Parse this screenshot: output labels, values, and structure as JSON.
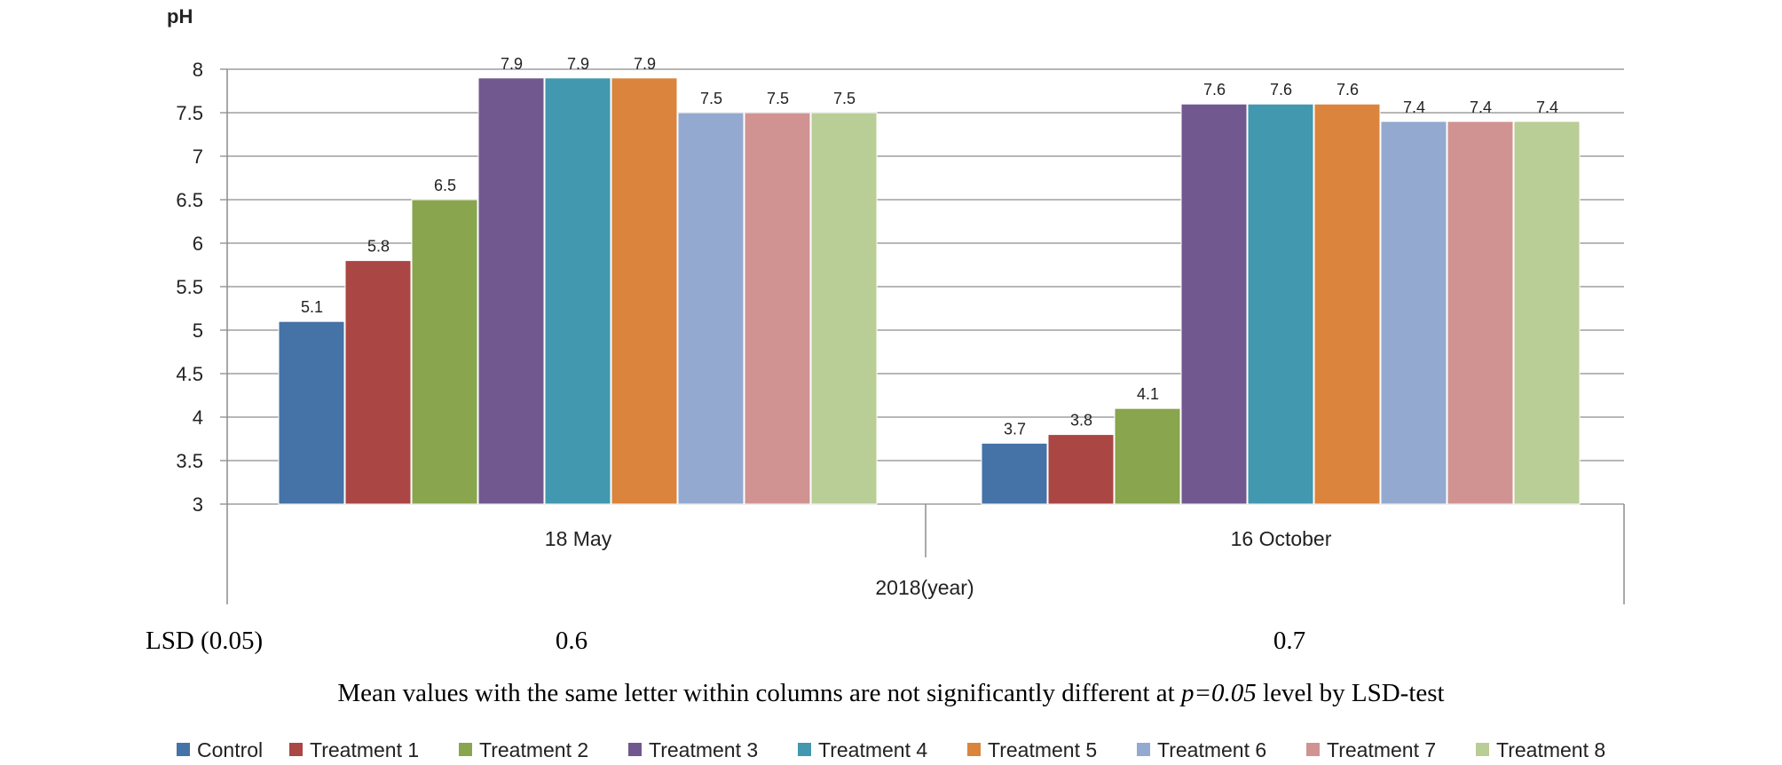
{
  "chart_data": {
    "type": "bar",
    "ylabel": "pH",
    "xlabel": "2018(year)",
    "ylim": [
      3,
      8
    ],
    "yticks": [
      3,
      3.5,
      4,
      4.5,
      5,
      5.5,
      6,
      6.5,
      7,
      7.5,
      8
    ],
    "ytick_labels": [
      "3",
      "3.5",
      "4",
      "4.5",
      "5",
      "5.5",
      "6",
      "6.5",
      "7",
      "7.5",
      "8"
    ],
    "grid": true,
    "legend_position": "bottom",
    "categories": [
      "18 May",
      "16 October"
    ],
    "series": [
      {
        "name": "Control",
        "color": "#4572A7",
        "values": [
          5.1,
          3.7
        ]
      },
      {
        "name": "Treatment 1",
        "color": "#AA4643",
        "values": [
          5.8,
          3.8
        ]
      },
      {
        "name": "Treatment 2",
        "color": "#89A54E",
        "values": [
          6.5,
          4.1
        ]
      },
      {
        "name": "Treatment 3",
        "color": "#71588F",
        "values": [
          7.9,
          7.6
        ]
      },
      {
        "name": "Treatment 4",
        "color": "#4198AF",
        "values": [
          7.9,
          7.6
        ]
      },
      {
        "name": "Treatment 5",
        "color": "#DB843D",
        "values": [
          7.9,
          7.6
        ]
      },
      {
        "name": "Treatment 6",
        "color": "#93A9CF",
        "values": [
          7.5,
          7.4
        ]
      },
      {
        "name": "Treatment 7",
        "color": "#D19392",
        "values": [
          7.5,
          7.4
        ]
      },
      {
        "name": "Treatment 8",
        "color": "#B9CD96",
        "values": [
          7.5,
          7.4
        ]
      }
    ]
  },
  "lsd": {
    "label": "LSD (0.05)",
    "values": [
      "0.6",
      "0.7"
    ]
  },
  "note": {
    "prefix": "Mean values with the same letter within columns are not significantly different at ",
    "italic": "p=0.05",
    "suffix": " level by LSD-test"
  }
}
